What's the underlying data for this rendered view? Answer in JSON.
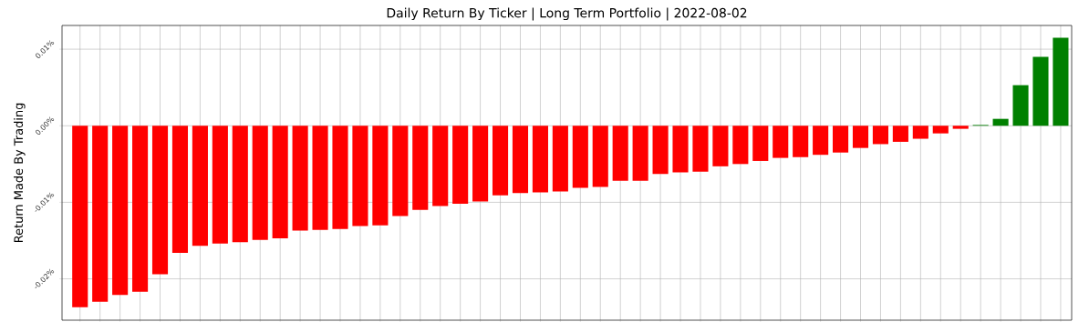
{
  "chart_data": {
    "type": "bar",
    "title": "Daily Return By Ticker | Long Term Portfolio | 2022-08-02",
    "ylabel": "Return Made By Trading",
    "categories": [
      null,
      null,
      null,
      null,
      null,
      null,
      null,
      null,
      null,
      null,
      null,
      null,
      null,
      null,
      null,
      null,
      null,
      null,
      null,
      null,
      null,
      null,
      null,
      null,
      null,
      null,
      null,
      null,
      null,
      null,
      null,
      null,
      null,
      null,
      null,
      null,
      null,
      null,
      null,
      null,
      null,
      null,
      null,
      null,
      null,
      null,
      null,
      null,
      null,
      null
    ],
    "values": [
      -0.0237,
      -0.023,
      -0.0221,
      -0.0217,
      -0.0194,
      -0.0166,
      -0.0157,
      -0.0154,
      -0.0152,
      -0.0149,
      -0.0147,
      -0.0137,
      -0.0136,
      -0.0135,
      -0.0131,
      -0.013,
      -0.0118,
      -0.011,
      -0.0105,
      -0.0102,
      -0.0099,
      -0.0091,
      -0.0088,
      -0.0087,
      -0.0086,
      -0.0081,
      -0.008,
      -0.0072,
      -0.0072,
      -0.0063,
      -0.0061,
      -0.006,
      -0.0053,
      -0.005,
      -0.0046,
      -0.0042,
      -0.0041,
      -0.0038,
      -0.0035,
      -0.0029,
      -0.0024,
      -0.0021,
      -0.0017,
      -0.001,
      -0.0004,
      0.0001,
      0.0009,
      0.0053,
      0.009,
      0.0115
    ],
    "colors": [
      "#ff0000",
      "#ff0000",
      "#ff0000",
      "#ff0000",
      "#ff0000",
      "#ff0000",
      "#ff0000",
      "#ff0000",
      "#ff0000",
      "#ff0000",
      "#ff0000",
      "#ff0000",
      "#ff0000",
      "#ff0000",
      "#ff0000",
      "#ff0000",
      "#ff0000",
      "#ff0000",
      "#ff0000",
      "#ff0000",
      "#ff0000",
      "#ff0000",
      "#ff0000",
      "#ff0000",
      "#ff0000",
      "#ff0000",
      "#ff0000",
      "#ff0000",
      "#ff0000",
      "#ff0000",
      "#ff0000",
      "#ff0000",
      "#ff0000",
      "#ff0000",
      "#ff0000",
      "#ff0000",
      "#ff0000",
      "#ff0000",
      "#ff0000",
      "#ff0000",
      "#ff0000",
      "#ff0000",
      "#ff0000",
      "#ff0000",
      "#ff0000",
      "#008000",
      "#008000",
      "#008000",
      "#008000",
      "#008000"
    ],
    "ylim": [
      -0.0254,
      0.0131
    ],
    "yticks": [
      {
        "value": -0.02,
        "label": "-0.02%"
      },
      {
        "value": -0.01,
        "label": "-0.01%"
      },
      {
        "value": 0.0,
        "label": "0.00%"
      },
      {
        "value": 0.01,
        "label": "0.01%"
      }
    ],
    "grid": true,
    "tick_labels": "y"
  }
}
